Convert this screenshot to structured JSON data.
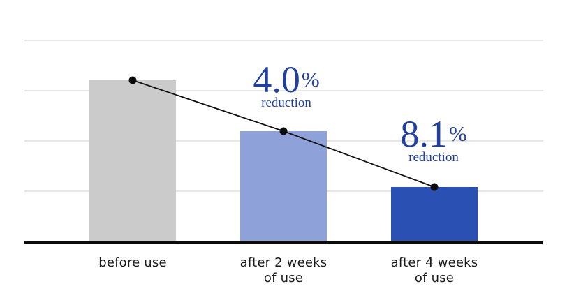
{
  "chart_data": {
    "type": "bar",
    "title": "",
    "categories": [
      "before use",
      "after 2 weeks of use",
      "after 4 weeks of use"
    ],
    "values_gridline_units": [
      3.2,
      2.18,
      1.07
    ],
    "values_pct_of_first_bar": [
      100,
      68,
      33
    ],
    "bar_colors": [
      "#cbcbcb",
      "#8fa1d9",
      "#2b50b4"
    ],
    "x_tick_labels": [
      [
        "before use"
      ],
      [
        "after 2 weeks",
        "of use"
      ],
      [
        "after 4 weeks",
        "of use"
      ]
    ],
    "annotations": [
      {
        "value": "4.0",
        "unit": "%",
        "label": "reduction",
        "category_index": 1
      },
      {
        "value": "8.1",
        "unit": "%",
        "label": "reduction",
        "category_index": 2
      }
    ],
    "overlay_line": {
      "type": "line",
      "through": "bar tops",
      "marker": "filled-circle"
    },
    "layout": {
      "grid": "4 horizontal light-gray gridlines, no y-axis tick labels",
      "legend": "none",
      "background": "#ffffff"
    },
    "colors": {
      "annotation_text": "#21409e",
      "axis": "#0b0b0b",
      "gridline": "#e6e6e6",
      "tick_label_text": "#1a1a1a",
      "trend_line": "#111111"
    }
  }
}
